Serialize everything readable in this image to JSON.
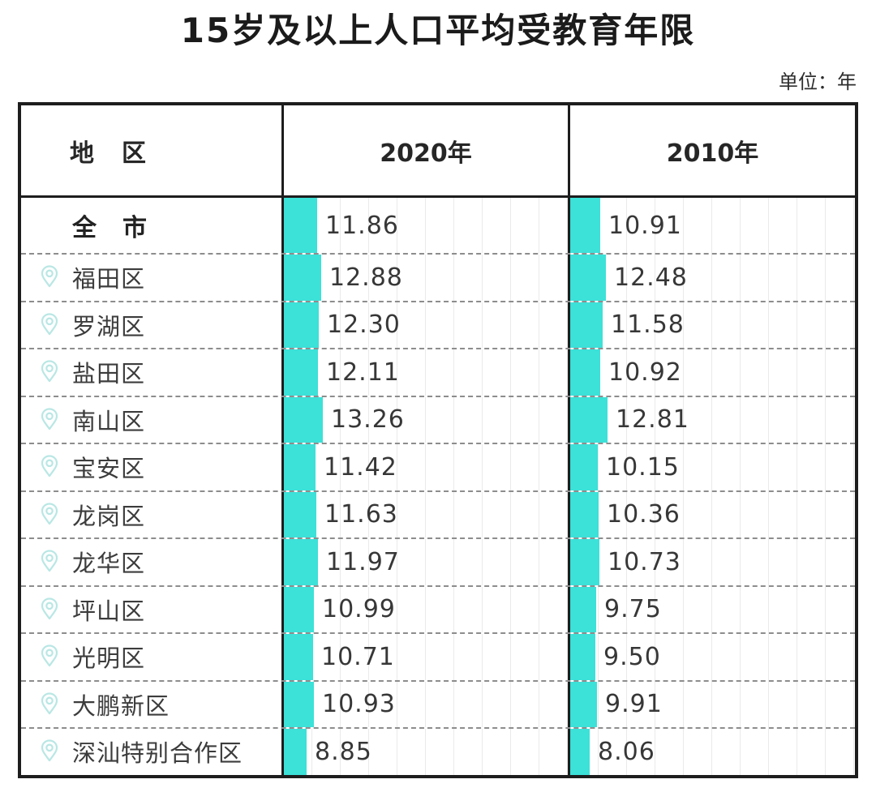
{
  "title": "15岁及以上人口平均受教育年限",
  "unit_label": "单位：年",
  "table": {
    "headers": {
      "region": "地　区",
      "year2020": "2020年",
      "year2010": "2010年"
    }
  },
  "chart_data": {
    "type": "bar",
    "orientation": "horizontal",
    "title": "15岁及以上人口平均受教育年限",
    "unit": "年",
    "column_headers": [
      "地　区",
      "2020年",
      "2010年"
    ],
    "categories": [
      "全　市",
      "福田区",
      "罗湖区",
      "盐田区",
      "南山区",
      "宝安区",
      "龙岗区",
      "龙华区",
      "坪山区",
      "光明区",
      "大鹏新区",
      "深汕特别合作区"
    ],
    "series": [
      {
        "name": "2020年",
        "values": [
          11.86,
          12.88,
          12.3,
          12.11,
          13.26,
          11.42,
          11.63,
          11.97,
          10.99,
          10.71,
          10.93,
          8.85
        ]
      },
      {
        "name": "2010年",
        "values": [
          10.91,
          12.48,
          11.58,
          10.92,
          12.81,
          10.15,
          10.36,
          10.73,
          9.75,
          9.5,
          9.91,
          8.06
        ]
      }
    ],
    "value_decimals": 2,
    "bar_color": "#3ce1d8",
    "pin_icon_color": "#b9e7e4",
    "grid": true,
    "legend_position": "none",
    "notes": "first row (全市) is the city total, shown bold without a pin icon"
  }
}
